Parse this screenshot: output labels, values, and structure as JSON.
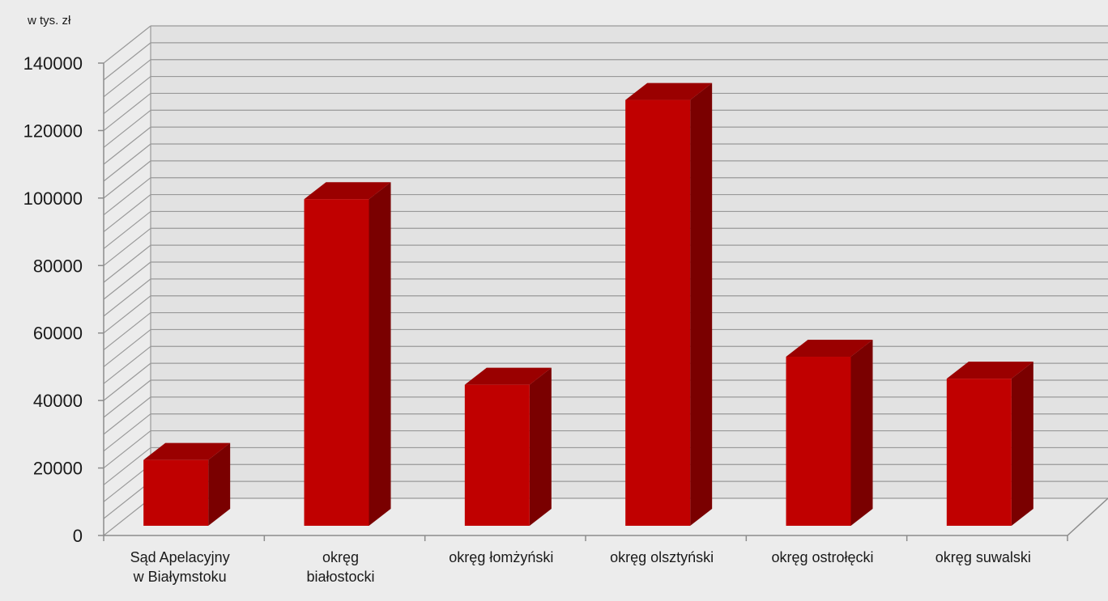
{
  "chart_data": {
    "type": "bar",
    "unit_label": "w tys. zł",
    "categories": [
      [
        "Sąd Apelacyjny",
        "w Białymstoku"
      ],
      [
        "okręg",
        "białostocki"
      ],
      [
        "okręg łomżyński"
      ],
      [
        "okręg olsztyński"
      ],
      [
        "okręg ostrołęcki"
      ],
      [
        "okręg suwalski"
      ]
    ],
    "values": [
      19500,
      96800,
      41800,
      126200,
      50100,
      43600
    ],
    "ylim": [
      0,
      140000
    ],
    "major_ticks": [
      0,
      20000,
      40000,
      60000,
      80000,
      100000,
      120000,
      140000
    ],
    "minor_tick_step": 5000,
    "grid": true,
    "colors": {
      "bar_front": "#c00000",
      "bar_side": "#7a0000",
      "bar_top": "#9a0000",
      "gridline": "#999999",
      "wall": "#e2e2e2",
      "axis": "#8c8c8c"
    }
  }
}
